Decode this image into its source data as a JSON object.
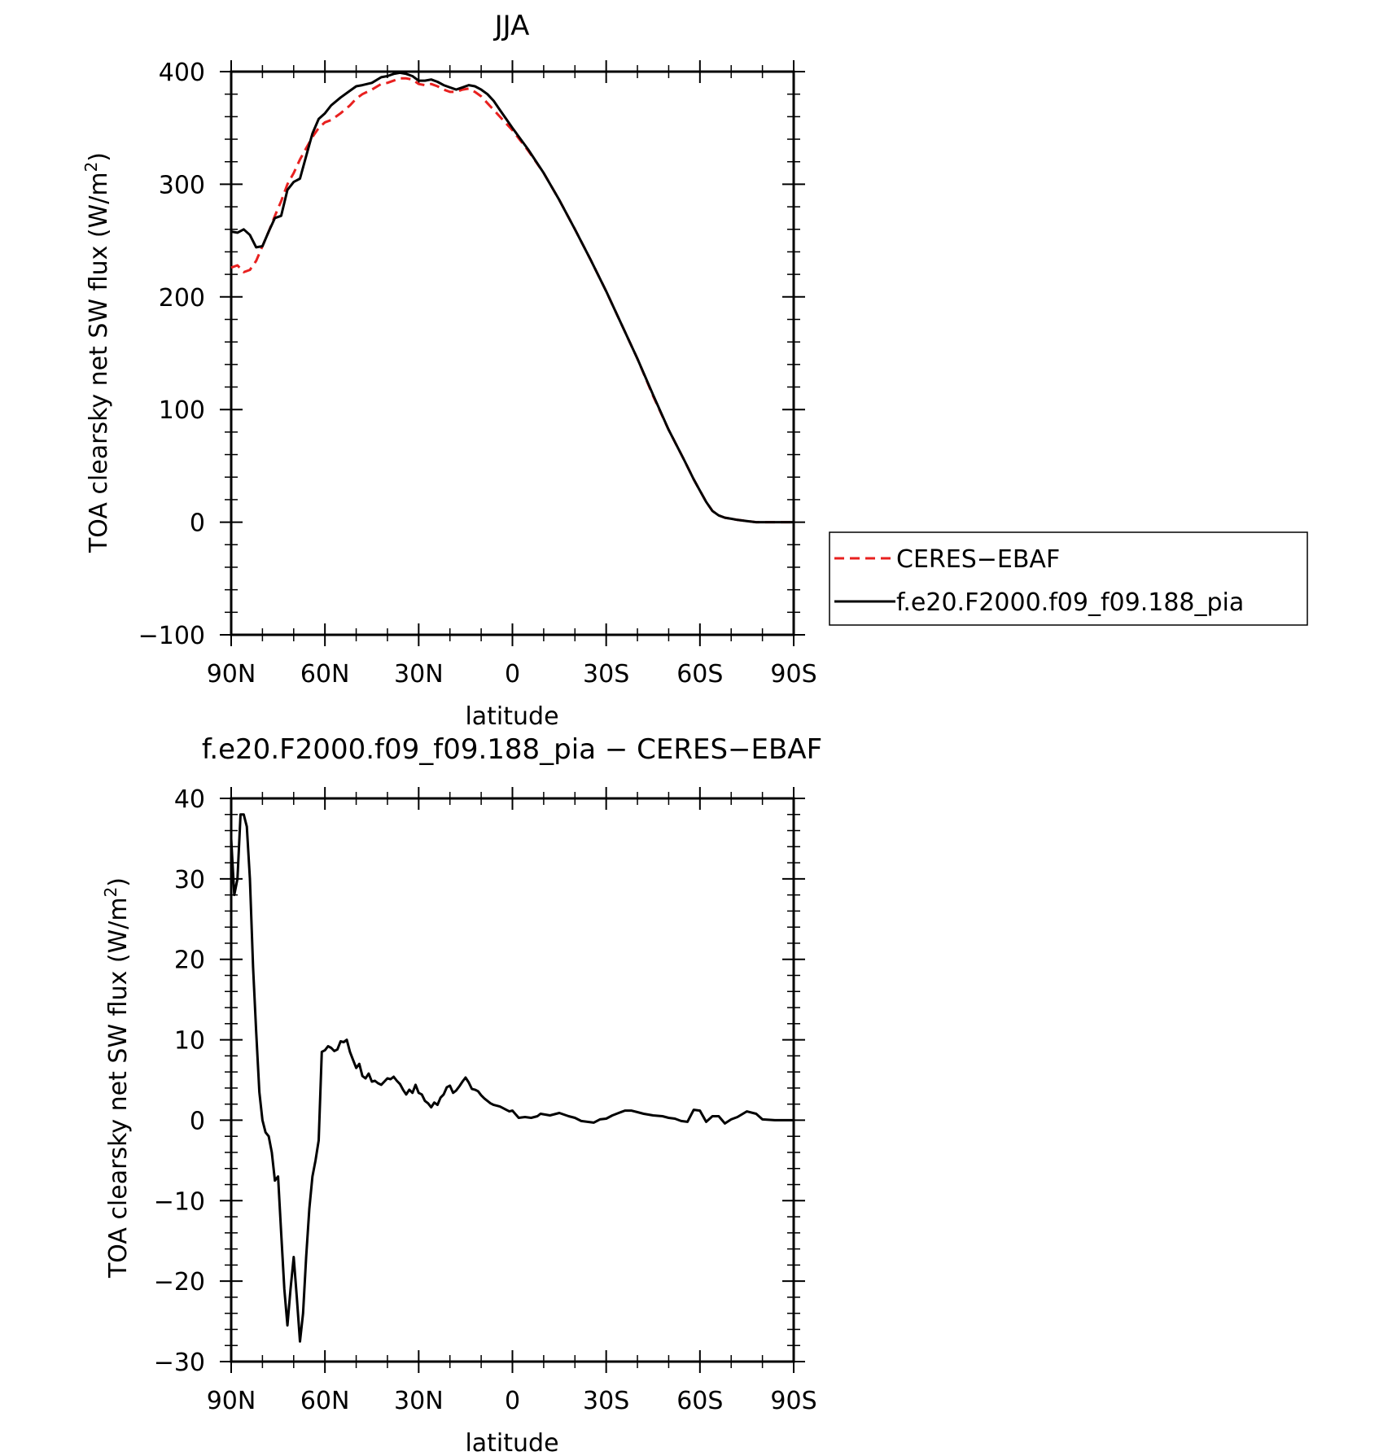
{
  "chart_data": [
    {
      "type": "line",
      "title": "JJA",
      "xlabel": "latitude",
      "ylabel": "TOA clearsky net SW flux (W/m",
      "ylabel_sup": "2",
      "ylabel_end": ")",
      "xlim": [
        90,
        -90
      ],
      "ylim": [
        -100,
        400
      ],
      "x_ticks": [
        90,
        60,
        30,
        0,
        -30,
        -60,
        -90
      ],
      "x_tick_labels": [
        "90N",
        "60N",
        "30N",
        "0",
        "30S",
        "60S",
        "90S"
      ],
      "y_ticks": [
        400,
        300,
        200,
        100,
        0,
        -100
      ],
      "y_tick_labels": [
        "400",
        "300",
        "200",
        "100",
        "0",
        "−100"
      ],
      "legend": "right",
      "series": [
        {
          "name": "CERES−EBAF",
          "color": "#e8201f",
          "dash": "dashed",
          "x": [
            90,
            88,
            86,
            84,
            82,
            80,
            78,
            76,
            74,
            72,
            70,
            68,
            66,
            64,
            62,
            60,
            58,
            55,
            52,
            50,
            48,
            45,
            42,
            40,
            38,
            36,
            34,
            32,
            30,
            28,
            26,
            24,
            22,
            20,
            18,
            16,
            14,
            12,
            10,
            8,
            6,
            4,
            2,
            0,
            -5,
            -10,
            -15,
            -20,
            -25,
            -30,
            -35,
            -40,
            -45,
            -50,
            -55,
            -58,
            -60,
            -62,
            -64,
            -66,
            -68,
            -70,
            -72,
            -75,
            -78,
            -80,
            -84,
            -88,
            -90
          ],
          "y": [
            226,
            228,
            222,
            224,
            232,
            245,
            258,
            272,
            285,
            300,
            310,
            322,
            332,
            342,
            350,
            355,
            357,
            363,
            370,
            376,
            380,
            384,
            389,
            390,
            392,
            394,
            394,
            393,
            389,
            388,
            389,
            387,
            384,
            382,
            382,
            384,
            385,
            382,
            378,
            372,
            366,
            360,
            354,
            348,
            330,
            310,
            286,
            260,
            233,
            205,
            175,
            145,
            112,
            82,
            55,
            38,
            28,
            18,
            10,
            6,
            4,
            3,
            2,
            1,
            0,
            0,
            0,
            0,
            0
          ]
        },
        {
          "name": "f.e20.F2000.f09_f09.188_pia",
          "color": "#000000",
          "dash": "solid",
          "x": [
            90,
            88,
            86,
            84,
            82,
            80,
            78,
            76,
            74,
            72,
            70,
            68,
            66,
            64,
            62,
            60,
            58,
            55,
            52,
            50,
            48,
            45,
            42,
            40,
            38,
            36,
            34,
            32,
            30,
            28,
            26,
            24,
            22,
            20,
            18,
            16,
            14,
            12,
            10,
            8,
            6,
            4,
            2,
            0,
            -5,
            -10,
            -15,
            -20,
            -25,
            -30,
            -35,
            -40,
            -45,
            -50,
            -55,
            -58,
            -60,
            -62,
            -64,
            -66,
            -68,
            -70,
            -72,
            -75,
            -78,
            -80,
            -84,
            -88,
            -90
          ],
          "y": [
            258,
            257,
            260,
            255,
            244,
            245,
            258,
            270,
            272,
            295,
            302,
            305,
            325,
            345,
            358,
            363,
            370,
            377,
            383,
            387,
            388,
            390,
            395,
            396,
            398,
            399,
            398,
            396,
            392,
            392,
            393,
            391,
            388,
            386,
            384,
            386,
            388,
            387,
            384,
            380,
            374,
            366,
            358,
            350,
            331,
            310,
            286,
            260,
            233,
            205,
            175,
            145,
            113,
            82,
            55,
            38,
            28,
            18,
            10,
            6,
            4,
            3,
            2,
            1,
            0,
            0,
            0,
            0,
            0
          ]
        }
      ]
    },
    {
      "type": "line",
      "title": "f.e20.F2000.f09_f09.188_pia − CERES−EBAF",
      "xlabel": "latitude",
      "ylabel": "TOA clearsky net SW flux (W/m",
      "ylabel_sup": "2",
      "ylabel_end": ")",
      "xlim": [
        90,
        -90
      ],
      "ylim": [
        -30,
        40
      ],
      "x_ticks": [
        90,
        60,
        30,
        0,
        -30,
        -60,
        -90
      ],
      "x_tick_labels": [
        "90N",
        "60N",
        "30N",
        "0",
        "30S",
        "60S",
        "90S"
      ],
      "y_ticks": [
        40,
        30,
        20,
        10,
        0,
        -10,
        -20,
        -30
      ],
      "y_tick_labels": [
        "40",
        "30",
        "20",
        "10",
        "0",
        "−10",
        "−20",
        "−30"
      ],
      "series": [
        {
          "name": "",
          "color": "#000000",
          "dash": "solid",
          "x": [
            90,
            89,
            88,
            87,
            86,
            85,
            84,
            83,
            82,
            81,
            80,
            79,
            78,
            77,
            76,
            75,
            74,
            73,
            72,
            71,
            70,
            69,
            68,
            67,
            66,
            65,
            64,
            63,
            62,
            61,
            60,
            59,
            58,
            57,
            56,
            55,
            54,
            53,
            52,
            51,
            50,
            49,
            48,
            47,
            46,
            45,
            44,
            43,
            42,
            41,
            40,
            39,
            38,
            37,
            36,
            35,
            34,
            33,
            32,
            31,
            30,
            29,
            28,
            27,
            26,
            25,
            24,
            23,
            22,
            21,
            20,
            19,
            18,
            17,
            16,
            15,
            14,
            13,
            12,
            11,
            10,
            9,
            8,
            7,
            6,
            5,
            4,
            3,
            2,
            1,
            0,
            -2,
            -4,
            -6,
            -8,
            -9,
            -12,
            -15,
            -18,
            -20,
            -22,
            -24,
            -26,
            -28,
            -30,
            -32,
            -34,
            -36,
            -38,
            -40,
            -42,
            -45,
            -48,
            -50,
            -52,
            -54,
            -56,
            -58,
            -60,
            -62,
            -64,
            -66,
            -68,
            -70,
            -72,
            -75,
            -78,
            -80,
            -84,
            -88,
            -90
          ],
          "y": [
            35,
            28,
            30,
            38,
            38,
            36.5,
            30,
            19,
            11,
            3.5,
            0,
            -1.5,
            -2,
            -4,
            -7.5,
            -7,
            -14,
            -21,
            -25.5,
            -21,
            -17,
            -22,
            -27.5,
            -24,
            -17,
            -11,
            -7,
            -5,
            -2.5,
            8.5,
            8.7,
            9.2,
            9,
            8.6,
            8.8,
            9.8,
            9.7,
            10,
            8.5,
            7.5,
            6.5,
            7,
            5.5,
            5.2,
            5.8,
            4.8,
            4.9,
            4.6,
            4.4,
            4.8,
            5.2,
            5.1,
            5.4,
            4.9,
            4.5,
            3.8,
            3.2,
            3.8,
            3.4,
            4.4,
            3.4,
            3.2,
            2.4,
            2.1,
            1.6,
            2.2,
            1.9,
            2.8,
            3.2,
            4.1,
            4.3,
            3.4,
            3.7,
            4.2,
            4.8,
            5.3,
            4.7,
            3.9,
            3.8,
            3.6,
            3.1,
            2.7,
            2.4,
            2.1,
            1.9,
            1.8,
            1.7,
            1.5,
            1.3,
            1.1,
            1.2,
            0.3,
            0.4,
            0.3,
            0.5,
            0.8,
            0.6,
            0.9,
            0.5,
            0.3,
            -0.1,
            -0.2,
            -0.3,
            0.1,
            0.2,
            0.6,
            0.9,
            1.2,
            1.2,
            1.0,
            0.8,
            0.6,
            0.5,
            0.3,
            0.2,
            -0.1,
            -0.2,
            1.3,
            1.2,
            -0.2,
            0.5,
            0.5,
            -0.4,
            0.1,
            0.4,
            1.1,
            0.8,
            0.1,
            0,
            0,
            0
          ]
        }
      ]
    }
  ]
}
